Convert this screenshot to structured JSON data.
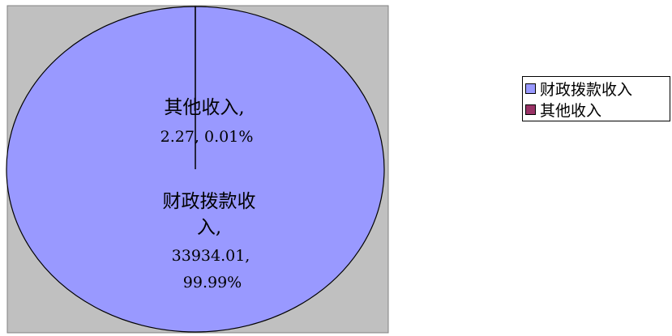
{
  "chart_data": {
    "type": "pie",
    "categories": [
      "财政拨款收入",
      "其他收入"
    ],
    "values": [
      33934.01,
      2.27
    ],
    "percents": [
      "99.99%",
      "0.01%"
    ],
    "colors": [
      "#9999ff",
      "#993366"
    ],
    "plot_area_color": "#c0c0c0",
    "legend_position": "right",
    "data_labels": [
      {
        "lines": [
          "财政拨款收",
          "入,",
          "33934.01,",
          "99.99%"
        ]
      },
      {
        "lines": [
          "其他收入,",
          "2.27,  0.01%"
        ]
      }
    ],
    "legend": [
      "财政拨款收入",
      "其他收入"
    ]
  }
}
